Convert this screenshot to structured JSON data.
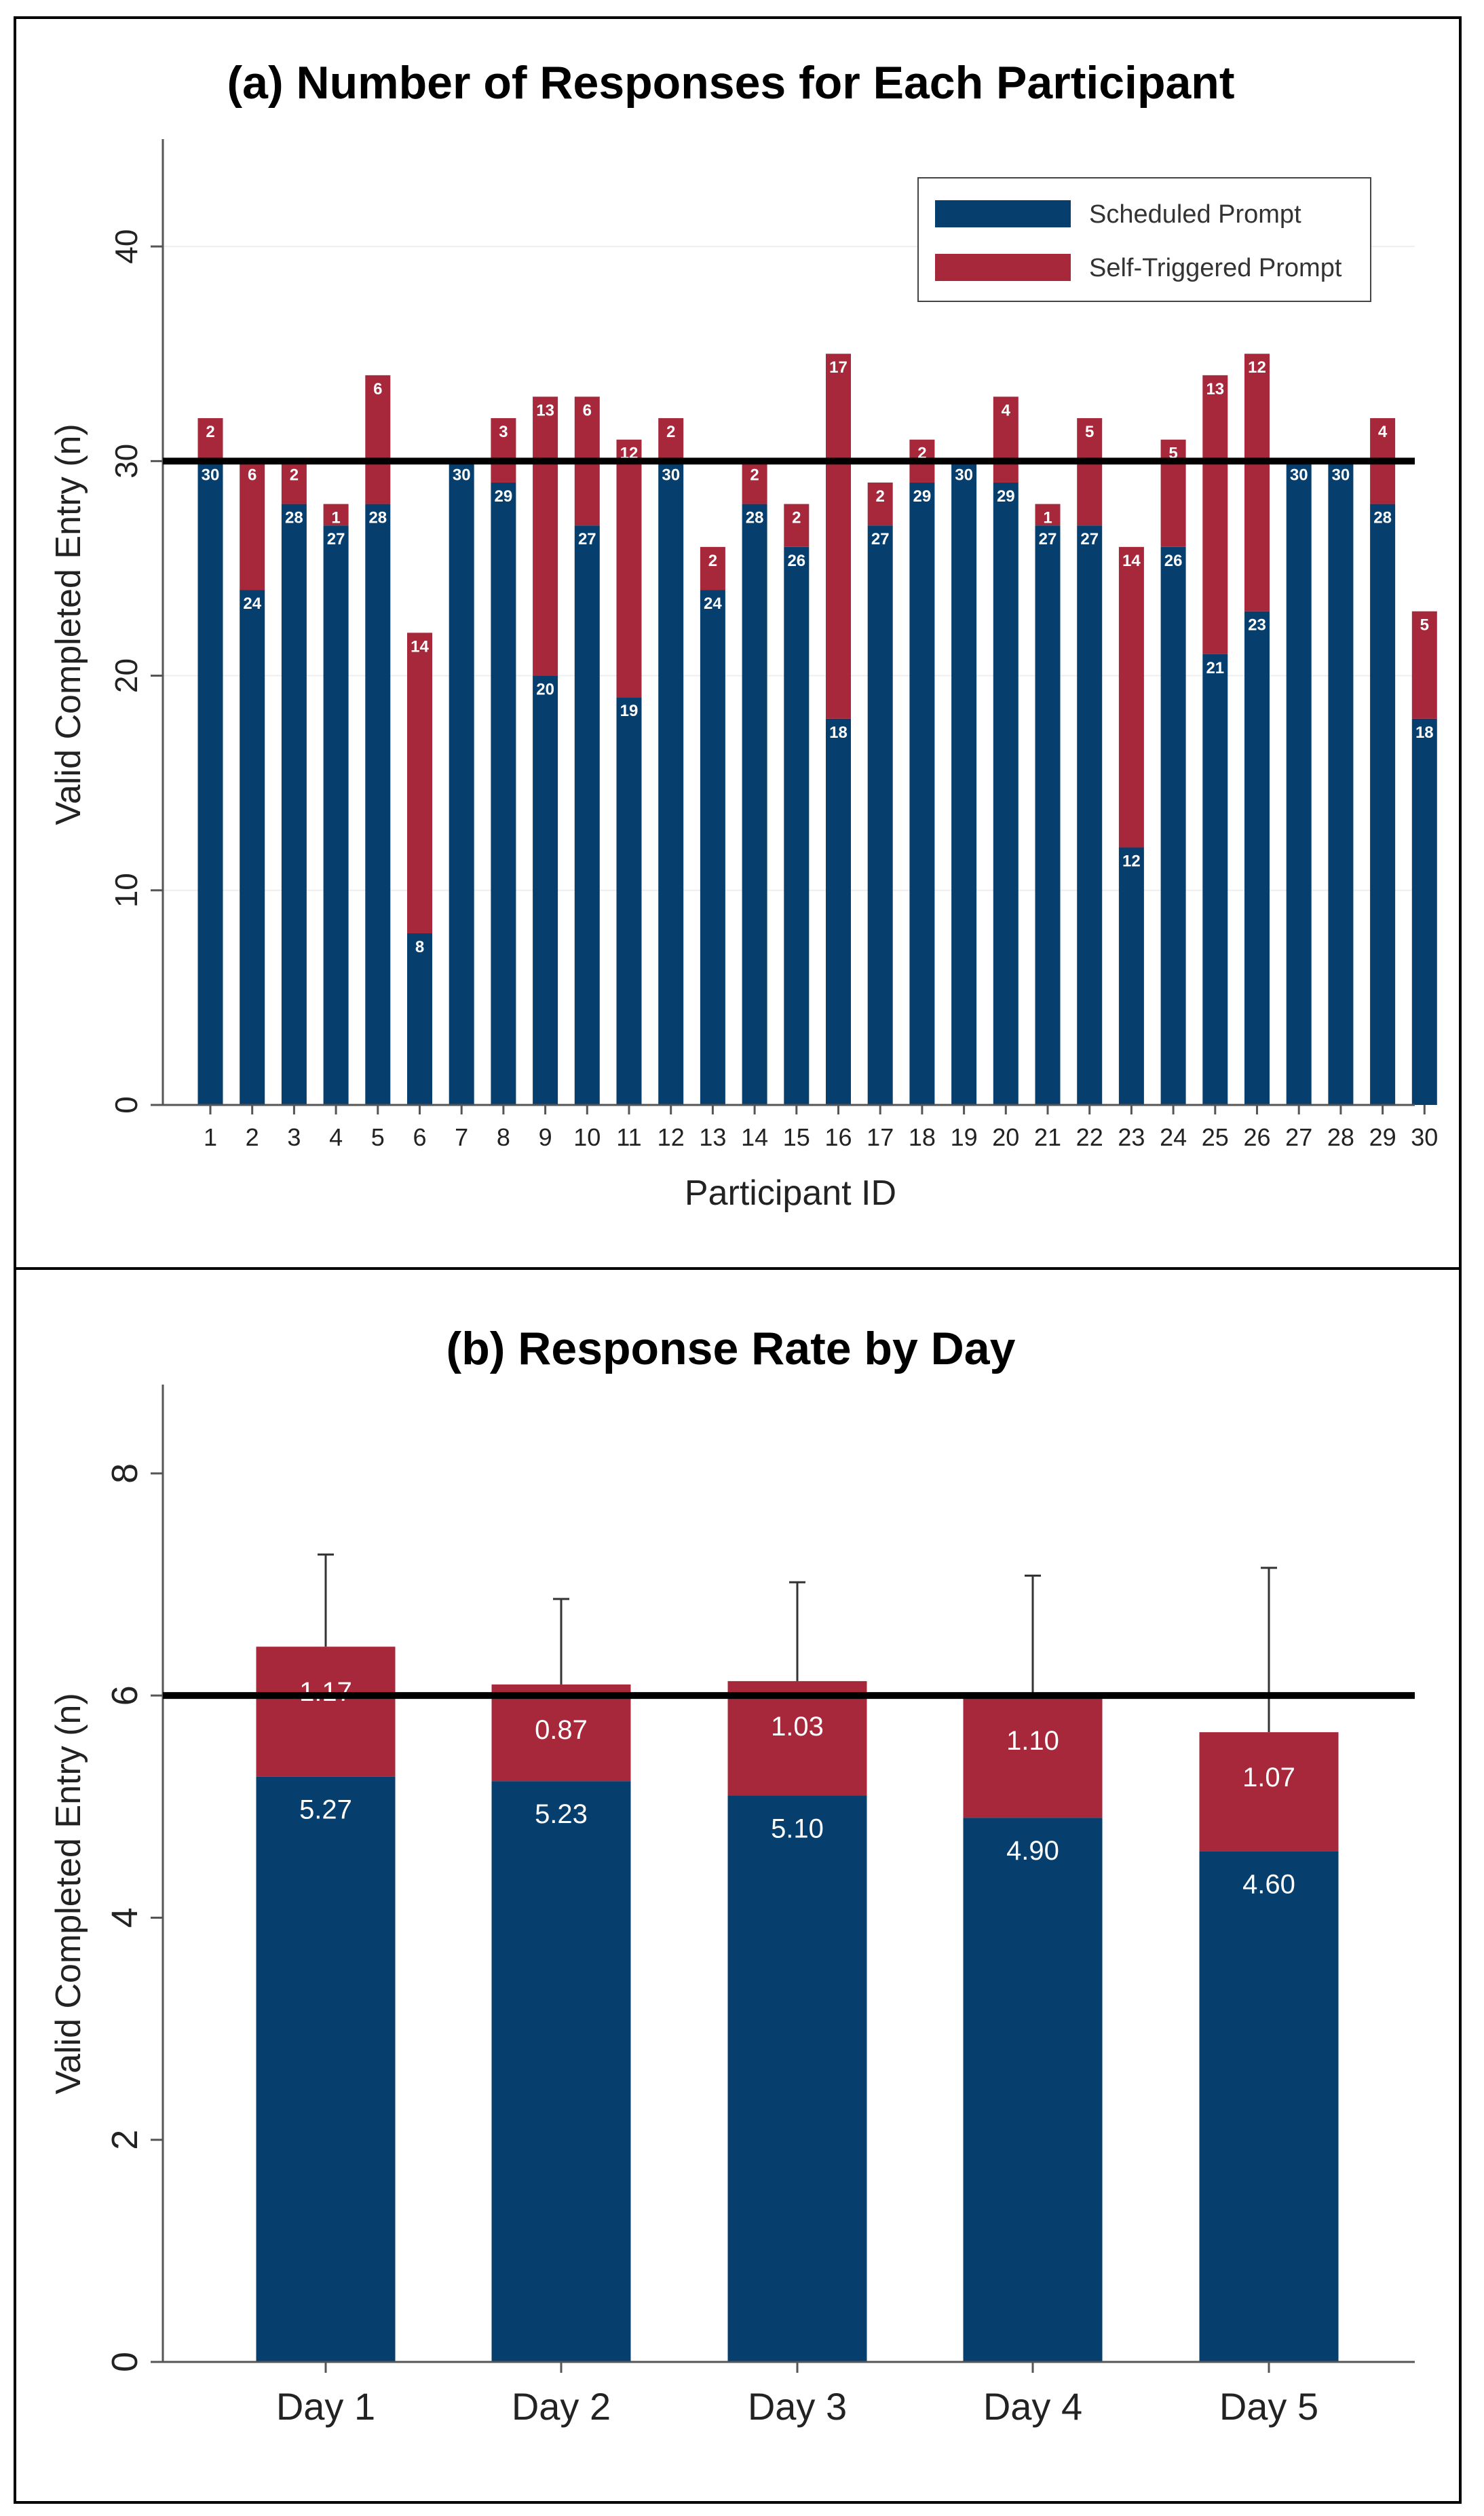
{
  "colors": {
    "scheduled": "#063f6e",
    "self_triggered": "#a8283b"
  },
  "chart_data": [
    {
      "type": "bar",
      "stacked": true,
      "title": "(a) Number of Responses for Each Participant",
      "xlabel": "Participant ID",
      "ylabel": "Valid Completed Entry (n)",
      "ylim": [
        0,
        45
      ],
      "yticks": [
        0,
        10,
        20,
        30,
        40
      ],
      "grid": true,
      "reference_line": 30,
      "legend_position": "top-right",
      "categories": [
        "1",
        "2",
        "3",
        "4",
        "5",
        "6",
        "7",
        "8",
        "9",
        "10",
        "11",
        "12",
        "13",
        "14",
        "15",
        "16",
        "17",
        "18",
        "19",
        "20",
        "21",
        "22",
        "23",
        "24",
        "25",
        "26",
        "27",
        "28",
        "29",
        "30"
      ],
      "series": [
        {
          "name": "Scheduled Prompt",
          "values": [
            30,
            24,
            28,
            27,
            28,
            8,
            30,
            29,
            20,
            27,
            19,
            30,
            24,
            28,
            26,
            18,
            27,
            29,
            30,
            29,
            27,
            27,
            12,
            26,
            21,
            23,
            30,
            30,
            28,
            18
          ]
        },
        {
          "name": "Self-Triggered Prompt",
          "values": [
            2,
            6,
            2,
            1,
            6,
            14,
            0,
            3,
            13,
            6,
            12,
            2,
            2,
            2,
            2,
            17,
            2,
            2,
            0,
            4,
            1,
            5,
            14,
            5,
            13,
            12,
            0,
            0,
            4,
            5
          ]
        }
      ]
    },
    {
      "type": "bar",
      "stacked": true,
      "title": "(b) Response Rate by Day",
      "xlabel": "",
      "ylabel": "Valid Completed Entry (n)",
      "ylim": [
        0,
        8.8
      ],
      "yticks": [
        0,
        2,
        4,
        6,
        8
      ],
      "grid": false,
      "reference_line": 6,
      "categories": [
        "Day 1",
        "Day 2",
        "Day 3",
        "Day 4",
        "Day 5"
      ],
      "series": [
        {
          "name": "Scheduled Prompt",
          "values": [
            5.27,
            5.23,
            5.1,
            4.9,
            4.6
          ],
          "labels": [
            "5.27",
            "5.23",
            "5.10",
            "4.90",
            "4.60"
          ]
        },
        {
          "name": "Self-Triggered Prompt",
          "values": [
            1.17,
            0.87,
            1.03,
            1.1,
            1.07
          ],
          "labels": [
            "1.17",
            "0.87",
            "1.03",
            "1.10",
            "1.07"
          ]
        }
      ],
      "error_bar_upper": [
        7.27,
        6.87,
        7.02,
        7.08,
        7.15
      ]
    }
  ]
}
